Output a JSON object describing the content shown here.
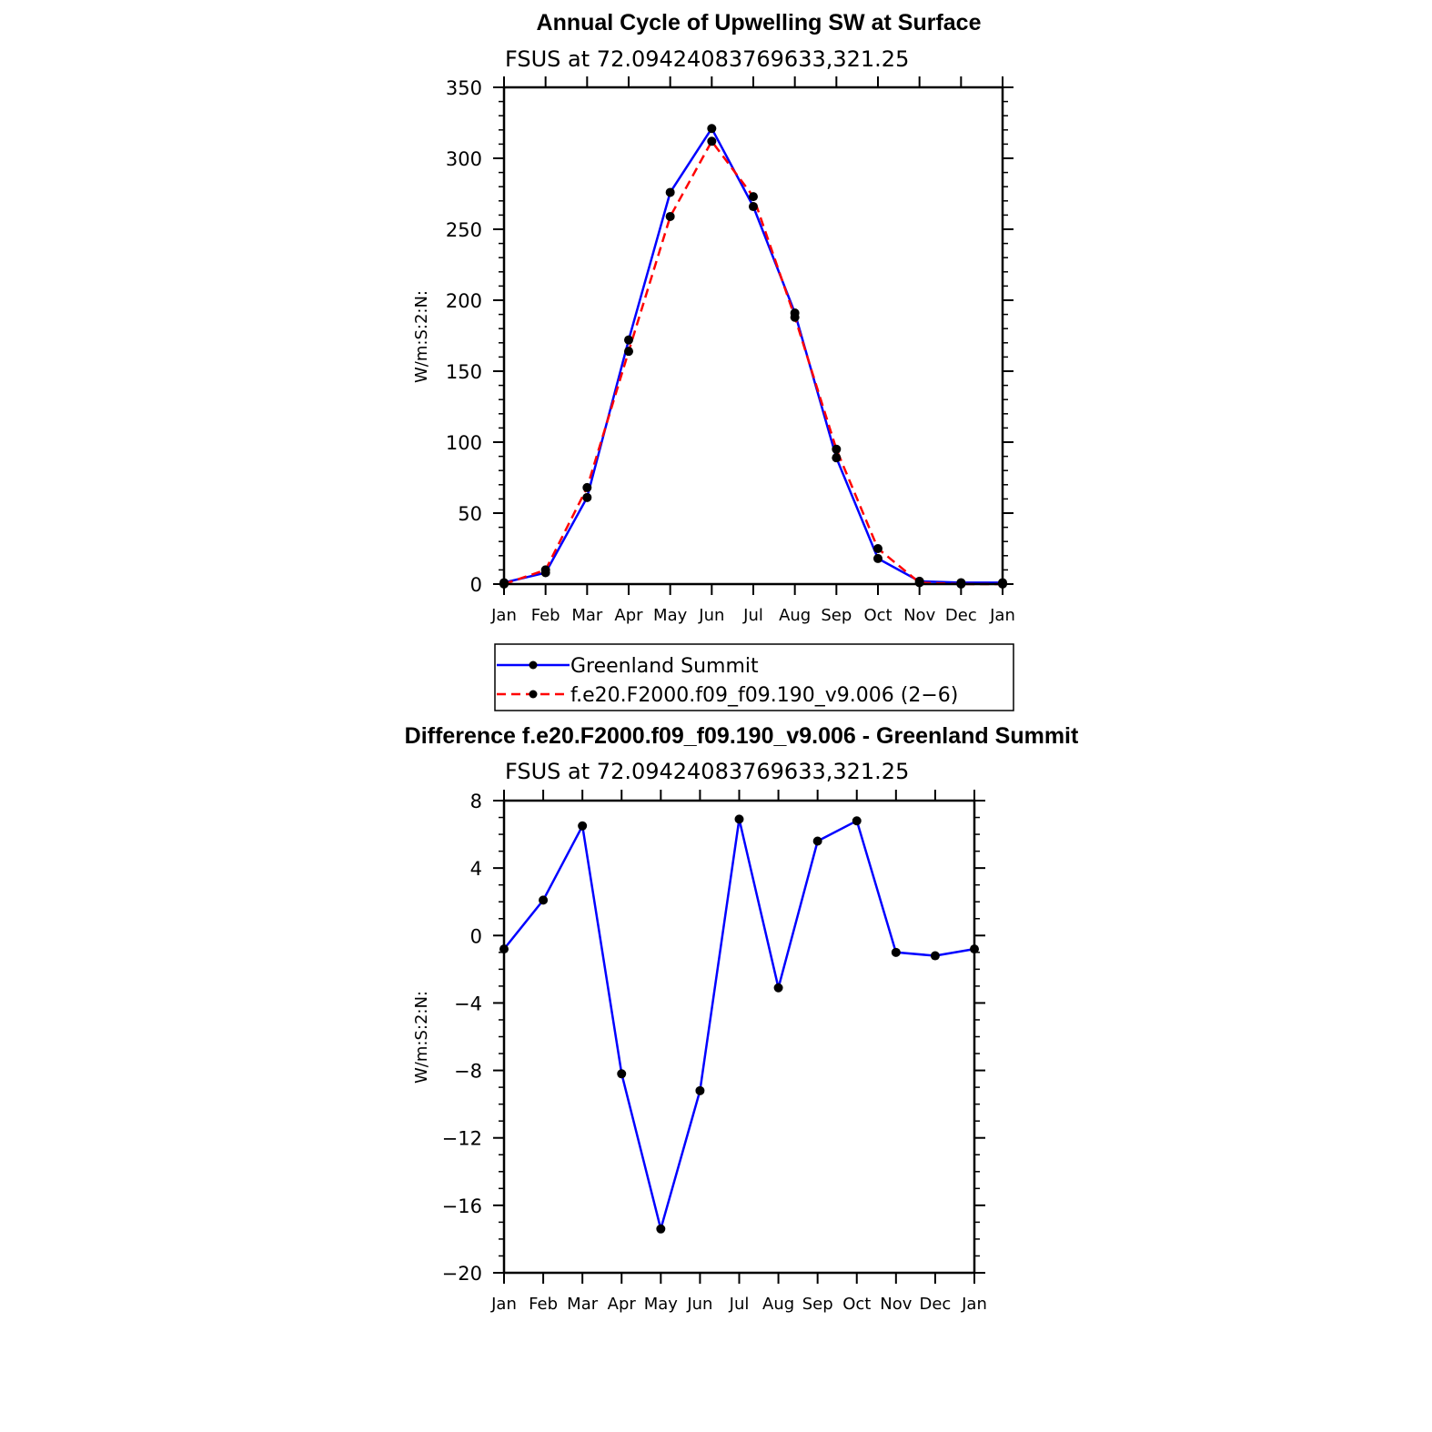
{
  "chart_data": [
    {
      "type": "line",
      "title": "Annual Cycle of Upwelling SW at Surface",
      "subtitle": "FSUS at 72.09424083769633,321.25",
      "ylabel": "W/m:S:2:N:",
      "xlabel": "",
      "categories": [
        "Jan",
        "Feb",
        "Mar",
        "Apr",
        "May",
        "Jun",
        "Jul",
        "Aug",
        "Sep",
        "Oct",
        "Nov",
        "Dec",
        "Jan"
      ],
      "ylim": [
        0,
        350
      ],
      "yticks": [
        0,
        50,
        100,
        150,
        200,
        250,
        300,
        350
      ],
      "yticks_labels": [
        "0",
        "50",
        "100",
        "150",
        "200",
        "250",
        "300",
        "350"
      ],
      "series": [
        {
          "name": "Greenland Summit",
          "color": "#0000ff",
          "dash": "solid",
          "values": [
            1,
            8,
            61,
            172,
            276,
            321,
            266,
            191,
            89,
            18,
            2,
            1,
            1
          ]
        },
        {
          "name": "f.e20.F2000.f09_f09.190_v9.006 (2−6)",
          "color": "#ff0000",
          "dash": "dashed",
          "values": [
            0,
            10,
            68,
            164,
            259,
            312,
            273,
            188,
            95,
            25,
            1,
            0,
            0
          ]
        }
      ],
      "legend": "below"
    },
    {
      "type": "line",
      "title": "Difference f.e20.F2000.f09_f09.190_v9.006 - Greenland Summit",
      "subtitle": "FSUS at 72.09424083769633,321.25",
      "ylabel": "W/m:S:2:N:",
      "xlabel": "",
      "categories": [
        "Jan",
        "Feb",
        "Mar",
        "Apr",
        "May",
        "Jun",
        "Jul",
        "Aug",
        "Sep",
        "Oct",
        "Nov",
        "Dec",
        "Jan"
      ],
      "ylim": [
        -20,
        8
      ],
      "yticks": [
        8,
        4,
        0,
        -4,
        -8,
        -12,
        -16,
        -20
      ],
      "yticks_labels": [
        "8",
        "4",
        "0",
        "−4",
        "−8",
        "−12",
        "−16",
        "−20"
      ],
      "series": [
        {
          "name": "Difference",
          "color": "#0000ff",
          "dash": "solid",
          "values": [
            -0.8,
            2.1,
            6.5,
            -8.2,
            -17.4,
            -9.2,
            6.9,
            -3.1,
            5.6,
            6.8,
            -1.0,
            -1.2,
            -0.8
          ]
        }
      ]
    }
  ]
}
